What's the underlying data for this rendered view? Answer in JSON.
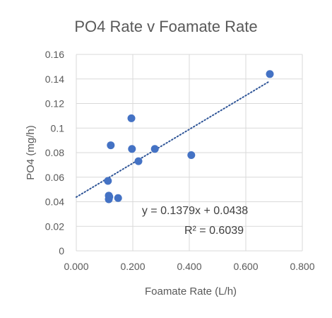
{
  "chart_data": {
    "type": "scatter",
    "title": "PO4 Rate v Foamate Rate",
    "xlabel": "Foamate Rate (L/h)",
    "ylabel": "PO4 (mg/h)",
    "xlim": [
      0,
      0.8
    ],
    "ylim": [
      0,
      0.16
    ],
    "x_ticks": [
      "0.000",
      "0.200",
      "0.400",
      "0.600",
      "0.800"
    ],
    "y_ticks": [
      "0",
      "0.02",
      "0.04",
      "0.06",
      "0.08",
      "0.1",
      "0.12",
      "0.14",
      "0.16"
    ],
    "grid": true,
    "points": [
      {
        "x": 0.112,
        "y": 0.057
      },
      {
        "x": 0.115,
        "y": 0.045
      },
      {
        "x": 0.117,
        "y": 0.044
      },
      {
        "x": 0.115,
        "y": 0.042
      },
      {
        "x": 0.148,
        "y": 0.043
      },
      {
        "x": 0.122,
        "y": 0.086
      },
      {
        "x": 0.195,
        "y": 0.108
      },
      {
        "x": 0.197,
        "y": 0.083
      },
      {
        "x": 0.22,
        "y": 0.073
      },
      {
        "x": 0.278,
        "y": 0.083
      },
      {
        "x": 0.407,
        "y": 0.078
      },
      {
        "x": 0.685,
        "y": 0.144
      }
    ],
    "trendline": {
      "type": "linear",
      "slope": 0.1379,
      "intercept": 0.0438,
      "x_range": [
        0,
        0.685
      ],
      "equation_label": "y = 0.1379x + 0.0438",
      "r2_label": "R² = 0.6039"
    },
    "colors": {
      "marker": "#4472c4",
      "trendline": "#2f5597",
      "grid": "#d9d9d9",
      "text": "#595959"
    }
  }
}
